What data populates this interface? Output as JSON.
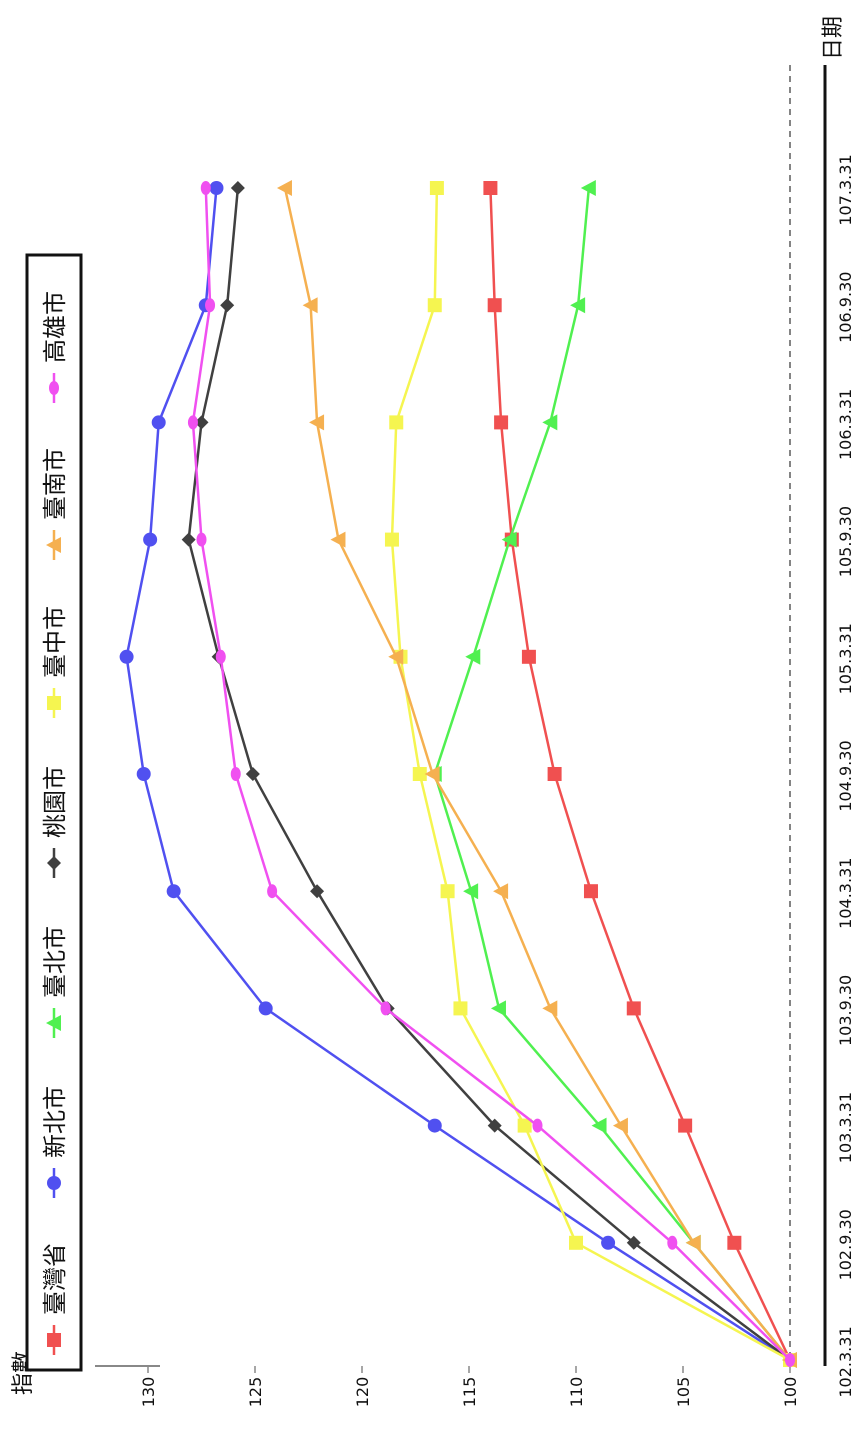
{
  "chart_data": {
    "type": "line",
    "x_unit": "日期",
    "y_unit": "指數",
    "categories": [
      "102.3.31",
      "102.9.30",
      "103.3.31",
      "103.9.30",
      "104.3.31",
      "104.9.30",
      "105.3.31",
      "105.9.30",
      "106.3.31",
      "106.9.30",
      "107.3.31"
    ],
    "y_ticks": [
      100,
      105,
      110,
      115,
      120,
      125,
      130
    ],
    "ylim": [
      100,
      131
    ],
    "reference_line": 100,
    "grid": false,
    "legend_position": "top-left",
    "series": [
      {
        "name": "臺灣省",
        "color": "#f05050",
        "marker": "square",
        "values": [
          100,
          102.6,
          104.9,
          107.3,
          109.3,
          111.0,
          112.2,
          113.0,
          113.5,
          113.8,
          114.0
        ]
      },
      {
        "name": "新北市",
        "color": "#5050f0",
        "marker": "circle",
        "values": [
          100,
          108.5,
          116.6,
          124.5,
          128.8,
          130.2,
          131.0,
          129.9,
          129.5,
          127.3,
          126.8
        ]
      },
      {
        "name": "臺北市",
        "color": "#50f050",
        "marker": "triangle",
        "values": [
          100,
          104.5,
          108.9,
          113.6,
          114.9,
          116.6,
          114.8,
          113.1,
          111.2,
          109.9,
          109.4
        ]
      },
      {
        "name": "桃園市",
        "color": "#404040",
        "marker": "diamond",
        "values": [
          100,
          107.3,
          113.8,
          118.8,
          122.1,
          125.1,
          126.7,
          128.1,
          127.5,
          126.3,
          125.8
        ]
      },
      {
        "name": "臺中市",
        "color": "#f5f550",
        "marker": "square",
        "values": [
          100,
          110.0,
          112.4,
          115.4,
          116.0,
          117.3,
          118.2,
          118.6,
          118.4,
          116.6,
          116.5
        ]
      },
      {
        "name": "臺南市",
        "color": "#f5b050",
        "marker": "triangle",
        "values": [
          100,
          104.5,
          107.9,
          111.2,
          113.5,
          116.7,
          118.4,
          121.1,
          122.1,
          122.4,
          123.6
        ]
      },
      {
        "name": "高雄市",
        "color": "#f050f0",
        "marker": "ellipse",
        "values": [
          100,
          105.5,
          111.8,
          118.9,
          124.2,
          125.9,
          126.6,
          127.5,
          127.9,
          127.1,
          127.3
        ]
      }
    ]
  }
}
